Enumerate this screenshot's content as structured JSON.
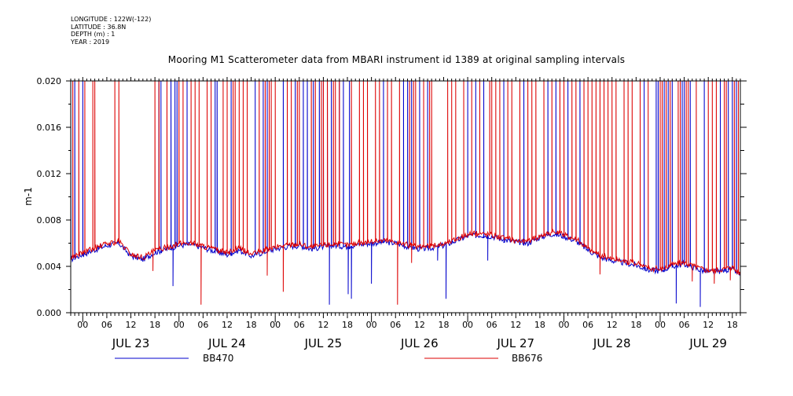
{
  "meta": {
    "longitude": "LONGITUDE : 122W(-122)",
    "latitude": "LATITUDE : 36.8N",
    "depth": "DEPTH (m) : 1",
    "year": "YEAR : 2019"
  },
  "chart_data": {
    "type": "line",
    "title": "Mooring M1 Scatterometer data from MBARI instrument id 1389 at original sampling intervals",
    "ylabel": "m-1",
    "xlabel": "",
    "ylim": [
      0.0,
      0.02
    ],
    "yticks": [
      "0.000",
      "0.004",
      "0.008",
      "0.012",
      "0.016",
      "0.020"
    ],
    "xrange_hours": [
      -3,
      164
    ],
    "x_hour_ticks": [
      "00",
      "06",
      "12",
      "18",
      "00",
      "06",
      "12",
      "18",
      "00",
      "06",
      "12",
      "18",
      "00",
      "06",
      "12",
      "18",
      "00",
      "06",
      "12",
      "18",
      "00",
      "06",
      "12",
      "18",
      "00",
      "06",
      "12",
      "18"
    ],
    "day_labels": [
      "JUL 23",
      "JUL 24",
      "JUL 25",
      "JUL 26",
      "JUL 27",
      "JUL 28",
      "JUL 29"
    ],
    "grid": false,
    "legend_position": "bottom",
    "baseline": [
      [
        -3,
        0.0046
      ],
      [
        2,
        0.0053
      ],
      [
        6,
        0.0058
      ],
      [
        9,
        0.006
      ],
      [
        12,
        0.0049
      ],
      [
        15,
        0.0046
      ],
      [
        18,
        0.0052
      ],
      [
        21,
        0.0055
      ],
      [
        24,
        0.0058
      ],
      [
        27,
        0.0059
      ],
      [
        30,
        0.0056
      ],
      [
        33,
        0.0053
      ],
      [
        36,
        0.005
      ],
      [
        39,
        0.0054
      ],
      [
        42,
        0.0049
      ],
      [
        45,
        0.0052
      ],
      [
        48,
        0.0055
      ],
      [
        51,
        0.0057
      ],
      [
        54,
        0.0058
      ],
      [
        57,
        0.0055
      ],
      [
        60,
        0.0057
      ],
      [
        63,
        0.0058
      ],
      [
        66,
        0.0057
      ],
      [
        69,
        0.0059
      ],
      [
        72,
        0.006
      ],
      [
        75,
        0.0061
      ],
      [
        78,
        0.006
      ],
      [
        81,
        0.0057
      ],
      [
        84,
        0.0055
      ],
      [
        87,
        0.0056
      ],
      [
        90,
        0.0058
      ],
      [
        93,
        0.0062
      ],
      [
        96,
        0.0066
      ],
      [
        99,
        0.0067
      ],
      [
        102,
        0.0066
      ],
      [
        105,
        0.0063
      ],
      [
        108,
        0.0061
      ],
      [
        111,
        0.006
      ],
      [
        114,
        0.0065
      ],
      [
        117,
        0.0068
      ],
      [
        120,
        0.0066
      ],
      [
        123,
        0.0062
      ],
      [
        126,
        0.0054
      ],
      [
        129,
        0.0048
      ],
      [
        132,
        0.0045
      ],
      [
        135,
        0.0043
      ],
      [
        138,
        0.0041
      ],
      [
        141,
        0.0037
      ],
      [
        144,
        0.0036
      ],
      [
        147,
        0.004
      ],
      [
        150,
        0.0042
      ],
      [
        153,
        0.0038
      ],
      [
        156,
        0.0035
      ],
      [
        159,
        0.0036
      ],
      [
        162,
        0.0038
      ],
      [
        164,
        0.0032
      ]
    ],
    "series": [
      {
        "name": "BB470",
        "color": "#0000cc",
        "offset": 0.0,
        "spikes": [
          -3,
          -2,
          0,
          19,
          19.5,
          22,
          23,
          23.5,
          26,
          33,
          33.5,
          37,
          43,
          45,
          46,
          50,
          53,
          55,
          56,
          57.5,
          59,
          60,
          61,
          62,
          64,
          65,
          66.5,
          75,
          80,
          81,
          82,
          84,
          86,
          96,
          98,
          100,
          105,
          110,
          116,
          118,
          121,
          124,
          140,
          143,
          143.5,
          145,
          146,
          147,
          149.5,
          150,
          151.5,
          155,
          159,
          161,
          162,
          163
        ],
        "dips": [
          [
            22.5,
            0.0023
          ],
          [
            61.5,
            0.0007
          ],
          [
            66.2,
            0.0016
          ],
          [
            67,
            0.0012
          ],
          [
            72,
            0.0025
          ],
          [
            88.5,
            0.0045
          ],
          [
            90.6,
            0.0012
          ],
          [
            101,
            0.0045
          ],
          [
            148,
            0.0008
          ],
          [
            154,
            0.0005
          ]
        ]
      },
      {
        "name": "BB676",
        "color": "#dd0000",
        "offset": 0.00015,
        "spikes": [
          -2.5,
          -1,
          0.5,
          2.5,
          3,
          8,
          9,
          18,
          19,
          21,
          24,
          25,
          27,
          28,
          29,
          31,
          32,
          35,
          36,
          37.5,
          38,
          39,
          40,
          41,
          44,
          45.5,
          46.5,
          47,
          48,
          51,
          52,
          53.5,
          54,
          57,
          58,
          59.5,
          60,
          61,
          62.5,
          63,
          64,
          67,
          69,
          70,
          71,
          73,
          74,
          76,
          77,
          79,
          81.5,
          82.5,
          83,
          85,
          86.5,
          87,
          91,
          92,
          93,
          95,
          97,
          99,
          101.5,
          102,
          103,
          104,
          106,
          107,
          109,
          111,
          112,
          113,
          115,
          117,
          119,
          120,
          122,
          123,
          125,
          126,
          127,
          128,
          129,
          130,
          131,
          132,
          133,
          135,
          136,
          137,
          139,
          141,
          144,
          144.5,
          145.5,
          146.5,
          148.5,
          149,
          150.5,
          151,
          153,
          156,
          157,
          158,
          160,
          160.5,
          162.5,
          163.5
        ],
        "dips": [
          [
            17.5,
            0.0036
          ],
          [
            29.5,
            0.0007
          ],
          [
            46,
            0.0032
          ],
          [
            50,
            0.0018
          ],
          [
            78.5,
            0.0007
          ],
          [
            82,
            0.0043
          ],
          [
            129,
            0.0033
          ],
          [
            152,
            0.0027
          ],
          [
            157.5,
            0.0025
          ],
          [
            161.5,
            0.0028
          ]
        ]
      }
    ]
  }
}
